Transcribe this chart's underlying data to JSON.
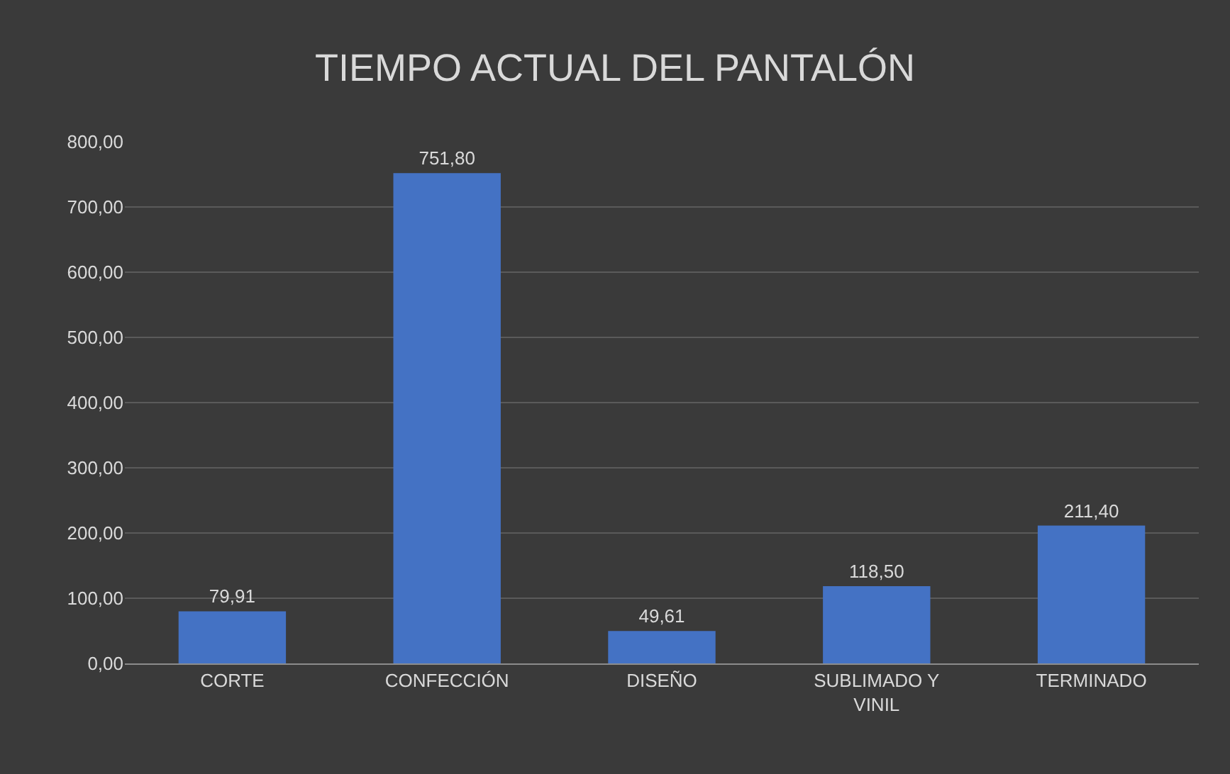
{
  "chart_data": {
    "type": "bar",
    "title": "TIEMPO ACTUAL DEL PANTALÓN",
    "categories": [
      "CORTE",
      "CONFECCIÓN",
      "DISEÑO",
      "SUBLIMADO Y VINIL",
      "TERMINADO"
    ],
    "values": [
      79.91,
      751.8,
      49.61,
      118.5,
      211.4
    ],
    "value_labels": [
      "79,91",
      "751,80",
      "49,61",
      "118,50",
      "211,40"
    ],
    "color": "#4472c4",
    "ylim": [
      0,
      800
    ],
    "yticks": [
      {
        "value": 0,
        "label": "0,00"
      },
      {
        "value": 100,
        "label": "100,00"
      },
      {
        "value": 200,
        "label": "200,00"
      },
      {
        "value": 300,
        "label": "300,00"
      },
      {
        "value": 400,
        "label": "400,00"
      },
      {
        "value": 500,
        "label": "500,00"
      },
      {
        "value": 600,
        "label": "600,00"
      },
      {
        "value": 700,
        "label": "700,00"
      },
      {
        "value": 800,
        "label": "800,00"
      }
    ],
    "grid": "y"
  }
}
